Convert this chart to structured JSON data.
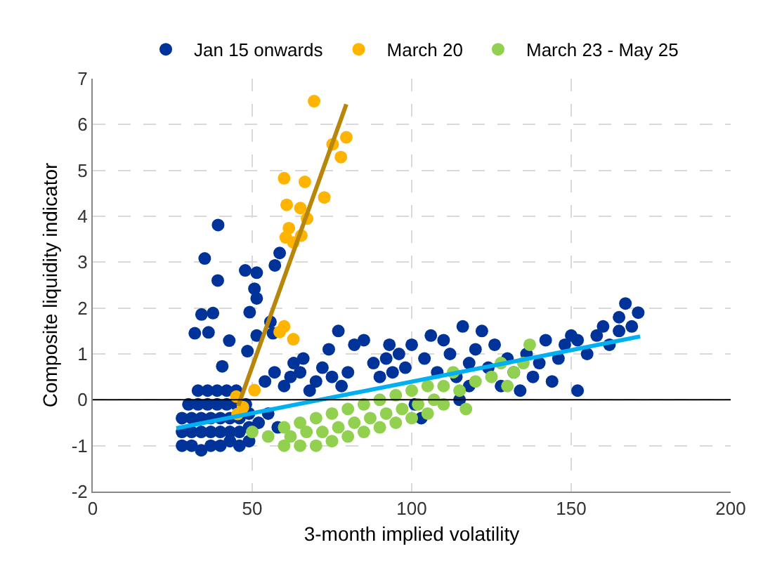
{
  "chart_data": {
    "type": "scatter",
    "xlabel": "3-month implied volatility",
    "ylabel": "Composite liquidity indicator",
    "xlim": [
      0,
      200
    ],
    "xticks": [
      0,
      50,
      100,
      150,
      200
    ],
    "ylim": [
      -2,
      7
    ],
    "yticks": [
      -2,
      -1,
      0,
      1,
      2,
      3,
      4,
      5,
      6,
      7
    ],
    "grid": true,
    "legend": "top",
    "ref_lines": [
      {
        "axis": "y",
        "value": 0,
        "color": "#000000"
      }
    ],
    "series": [
      {
        "name": "Jan 15 onwards",
        "color": "#003399",
        "marker": "circle",
        "x": [
          39.3,
          35.1,
          39.2,
          34.1,
          37.7,
          36.3,
          47.8,
          51.4,
          50.7,
          51.4,
          49.2,
          57.1,
          58.6,
          55.7,
          56.5,
          51.4,
          32.0,
          42.8,
          48.5,
          40.6,
          28,
          31,
          34,
          37,
          40,
          43,
          46,
          49,
          28,
          31,
          34,
          37,
          40,
          43,
          46,
          49,
          28,
          31,
          34,
          37,
          40,
          43,
          46,
          49,
          30,
          33,
          36,
          39,
          42,
          45,
          48,
          33,
          36,
          39,
          42,
          45,
          52,
          55,
          58,
          54,
          57,
          60,
          62,
          65,
          68,
          63,
          66,
          70,
          72,
          75,
          78,
          80,
          82,
          85,
          88,
          74,
          77,
          90,
          92,
          94,
          96,
          98,
          100,
          93,
          101,
          103,
          104,
          106,
          108,
          110,
          112,
          114,
          116,
          118,
          120,
          122,
          124,
          126,
          130,
          128,
          132,
          134,
          136,
          138,
          140,
          142,
          144,
          146,
          148,
          150,
          152,
          152,
          155,
          158,
          160,
          162,
          165,
          167,
          165,
          171,
          169,
          118,
          115
        ],
        "values": [
          3.81,
          3.08,
          2.6,
          1.86,
          1.89,
          1.47,
          2.82,
          2.77,
          2.42,
          2.21,
          1.91,
          2.93,
          3.2,
          1.7,
          1.45,
          1.4,
          1.45,
          1.29,
          1.06,
          0.73,
          -1.0,
          -1.0,
          -1.1,
          -1.0,
          -1.0,
          -0.9,
          -1.0,
          -0.9,
          -0.7,
          -0.7,
          -0.7,
          -0.7,
          -0.7,
          -0.7,
          -0.7,
          -0.6,
          -0.4,
          -0.4,
          -0.4,
          -0.4,
          -0.4,
          -0.4,
          -0.4,
          -0.3,
          -0.1,
          -0.1,
          -0.1,
          -0.1,
          -0.1,
          -0.1,
          -0.1,
          0.2,
          0.2,
          0.2,
          0.2,
          0.2,
          -0.5,
          -0.3,
          -0.6,
          0.4,
          0.6,
          0.3,
          0.5,
          0.6,
          0.2,
          0.8,
          0.9,
          0.4,
          0.7,
          0.5,
          0.3,
          0.6,
          1.2,
          1.3,
          0.8,
          1.1,
          1.5,
          0.5,
          0.9,
          0.6,
          1.0,
          0.7,
          1.2,
          1.2,
          -0.1,
          -0.4,
          0.9,
          1.4,
          0.6,
          1.3,
          1.0,
          0.5,
          1.6,
          0.8,
          1.1,
          1.5,
          0.7,
          1.2,
          0.9,
          0.3,
          0.6,
          0.2,
          1.0,
          0.5,
          0.8,
          1.3,
          0.4,
          0.9,
          1.2,
          1.4,
          1.3,
          0.2,
          1.0,
          1.4,
          1.6,
          1.2,
          1.5,
          2.1,
          1.8,
          1.9,
          1.6,
          0.3,
          0.0
        ]
      },
      {
        "name": "March 20",
        "color": "#ffb400",
        "marker": "circle",
        "x": [
          69.4,
          75.2,
          79.5,
          77.8,
          60.0,
          66.5,
          72.6,
          60.8,
          65.1,
          67.2,
          61.5,
          60.5,
          65.4,
          62.9,
          60.0,
          58.6,
          62.9,
          50.7,
          45.0,
          47.1,
          45.4
        ],
        "values": [
          6.51,
          5.57,
          5.72,
          5.29,
          4.83,
          4.75,
          4.41,
          4.25,
          4.18,
          3.95,
          3.74,
          3.54,
          3.58,
          3.43,
          1.6,
          1.48,
          1.32,
          0.21,
          0.07,
          -0.16,
          -0.31
        ]
      },
      {
        "name": "March 23 - May 25",
        "color": "#92d050",
        "marker": "circle",
        "x": [
          60,
          65,
          70,
          75,
          80,
          85,
          90,
          95,
          100,
          105,
          110,
          60,
          65,
          70,
          75,
          80,
          85,
          90,
          95,
          100,
          105,
          110,
          62,
          67,
          72,
          77,
          82,
          87,
          92,
          97,
          102,
          107,
          55,
          50,
          115,
          120,
          125,
          128,
          132,
          137,
          130,
          135,
          117,
          113
        ],
        "values": [
          -1.0,
          -1.0,
          -1.0,
          -0.9,
          -0.8,
          -0.7,
          -0.6,
          -0.5,
          -0.4,
          -0.3,
          -0.1,
          -0.6,
          -0.5,
          -0.4,
          -0.3,
          -0.2,
          -0.1,
          0.0,
          0.1,
          0.2,
          0.3,
          0.3,
          -0.8,
          -0.7,
          -0.7,
          -0.6,
          -0.5,
          -0.4,
          -0.3,
          -0.2,
          -0.1,
          0.0,
          -0.8,
          -0.7,
          0.2,
          0.4,
          0.5,
          0.8,
          0.6,
          1.2,
          0.3,
          0.8,
          -0.2,
          0.6
        ]
      },
      {
        "color": "#b8860b",
        "type": "line",
        "x": [
          45.6,
          79.5
        ],
        "values": [
          -0.13,
          6.44
        ]
      },
      {
        "color": "#00b0f0",
        "type": "line",
        "x": [
          26.2,
          171.6
        ],
        "values": [
          -0.62,
          1.38
        ]
      }
    ]
  }
}
